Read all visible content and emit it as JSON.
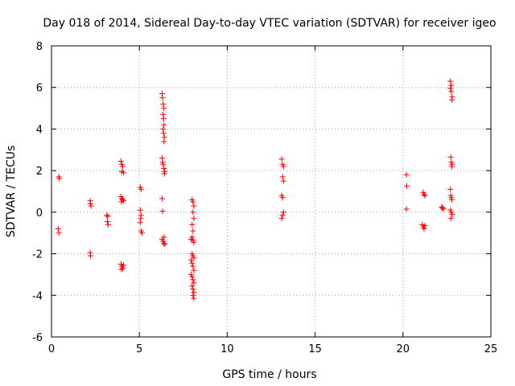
{
  "chart_data": {
    "type": "scatter",
    "title": "Day 018 of 2014, Sidereal Day-to-day VTEC variation (SDTVAR) for receiver igeo",
    "xlabel": "GPS time / hours",
    "ylabel": "SDTVAR / TECUs",
    "xlim": [
      0,
      25
    ],
    "ylim": [
      -6,
      8
    ],
    "xticks": [
      0,
      5,
      10,
      15,
      20,
      25
    ],
    "yticks": [
      -6,
      -4,
      -2,
      0,
      2,
      4,
      6,
      8
    ],
    "grid": true,
    "marker": "+",
    "color": "#ff0000",
    "series": [
      {
        "name": "SDTVAR",
        "points": [
          [
            0.42,
            1.7
          ],
          [
            0.45,
            1.62
          ],
          [
            0.38,
            -0.8
          ],
          [
            0.42,
            -1.0
          ],
          [
            2.2,
            0.55
          ],
          [
            2.22,
            0.4
          ],
          [
            2.25,
            0.3
          ],
          [
            2.2,
            -1.95
          ],
          [
            2.22,
            -2.1
          ],
          [
            3.15,
            -0.15
          ],
          [
            3.2,
            -0.2
          ],
          [
            3.18,
            -0.45
          ],
          [
            3.22,
            -0.6
          ],
          [
            3.95,
            2.45
          ],
          [
            4.0,
            2.3
          ],
          [
            4.05,
            2.2
          ],
          [
            4.0,
            1.95
          ],
          [
            4.1,
            1.9
          ],
          [
            3.95,
            0.75
          ],
          [
            4.0,
            0.65
          ],
          [
            4.05,
            0.6
          ],
          [
            4.1,
            0.55
          ],
          [
            3.98,
            0.5
          ],
          [
            3.95,
            -2.5
          ],
          [
            4.0,
            -2.6
          ],
          [
            4.05,
            -2.7
          ],
          [
            4.1,
            -2.55
          ],
          [
            3.98,
            -2.75
          ],
          [
            5.05,
            1.2
          ],
          [
            5.1,
            1.1
          ],
          [
            5.05,
            0.1
          ],
          [
            5.1,
            -0.15
          ],
          [
            5.08,
            -0.3
          ],
          [
            5.05,
            -0.5
          ],
          [
            5.1,
            -0.9
          ],
          [
            5.15,
            -1.0
          ],
          [
            6.3,
            5.7
          ],
          [
            6.32,
            5.5
          ],
          [
            6.35,
            5.2
          ],
          [
            6.4,
            5.0
          ],
          [
            6.35,
            4.7
          ],
          [
            6.38,
            4.5
          ],
          [
            6.4,
            4.2
          ],
          [
            6.35,
            4.0
          ],
          [
            6.38,
            3.8
          ],
          [
            6.42,
            3.6
          ],
          [
            6.4,
            3.4
          ],
          [
            6.3,
            2.6
          ],
          [
            6.32,
            2.4
          ],
          [
            6.35,
            2.3
          ],
          [
            6.4,
            2.1
          ],
          [
            6.45,
            1.95
          ],
          [
            6.42,
            1.85
          ],
          [
            6.3,
            0.65
          ],
          [
            6.32,
            0.05
          ],
          [
            6.3,
            -1.3
          ],
          [
            6.35,
            -1.4
          ],
          [
            6.4,
            -1.5
          ],
          [
            6.45,
            -1.55
          ],
          [
            6.4,
            -1.2
          ],
          [
            8.0,
            0.6
          ],
          [
            8.05,
            0.5
          ],
          [
            8.1,
            0.3
          ],
          [
            8.05,
            0.0
          ],
          [
            8.1,
            -0.3
          ],
          [
            8.0,
            -0.6
          ],
          [
            8.05,
            -0.9
          ],
          [
            8.0,
            -1.2
          ],
          [
            8.05,
            -1.35
          ],
          [
            8.1,
            -1.45
          ],
          [
            7.95,
            -1.3
          ],
          [
            8.0,
            -2.0
          ],
          [
            8.05,
            -2.1
          ],
          [
            8.1,
            -2.2
          ],
          [
            7.95,
            -2.3
          ],
          [
            8.0,
            -2.45
          ],
          [
            8.05,
            -2.6
          ],
          [
            8.1,
            -2.8
          ],
          [
            7.95,
            -3.0
          ],
          [
            8.0,
            -3.1
          ],
          [
            8.05,
            -3.25
          ],
          [
            8.1,
            -3.4
          ],
          [
            8.0,
            -3.55
          ],
          [
            8.05,
            -3.7
          ],
          [
            8.1,
            -3.85
          ],
          [
            8.05,
            -4.0
          ],
          [
            8.1,
            -4.15
          ],
          [
            13.1,
            2.55
          ],
          [
            13.15,
            2.3
          ],
          [
            13.2,
            2.2
          ],
          [
            13.15,
            1.7
          ],
          [
            13.2,
            1.5
          ],
          [
            13.1,
            0.8
          ],
          [
            13.15,
            0.7
          ],
          [
            13.2,
            0.0
          ],
          [
            13.15,
            -0.15
          ],
          [
            13.1,
            -0.3
          ],
          [
            20.2,
            1.8
          ],
          [
            20.22,
            1.25
          ],
          [
            20.2,
            0.15
          ],
          [
            21.15,
            0.95
          ],
          [
            21.2,
            0.85
          ],
          [
            21.25,
            0.8
          ],
          [
            21.1,
            -0.6
          ],
          [
            21.15,
            -0.7
          ],
          [
            21.2,
            -0.8
          ],
          [
            21.25,
            -0.65
          ],
          [
            22.2,
            0.25
          ],
          [
            22.25,
            0.2
          ],
          [
            22.3,
            0.15
          ],
          [
            22.7,
            6.3
          ],
          [
            22.75,
            6.1
          ],
          [
            22.7,
            5.95
          ],
          [
            22.75,
            5.8
          ],
          [
            22.8,
            5.55
          ],
          [
            22.78,
            5.4
          ],
          [
            22.72,
            2.65
          ],
          [
            22.75,
            2.4
          ],
          [
            22.8,
            2.3
          ],
          [
            22.78,
            2.2
          ],
          [
            22.7,
            1.1
          ],
          [
            22.72,
            0.8
          ],
          [
            22.75,
            0.7
          ],
          [
            22.78,
            0.6
          ],
          [
            22.7,
            0.1
          ],
          [
            22.75,
            0.0
          ],
          [
            22.8,
            -0.1
          ],
          [
            22.72,
            -0.3
          ]
        ]
      }
    ]
  }
}
